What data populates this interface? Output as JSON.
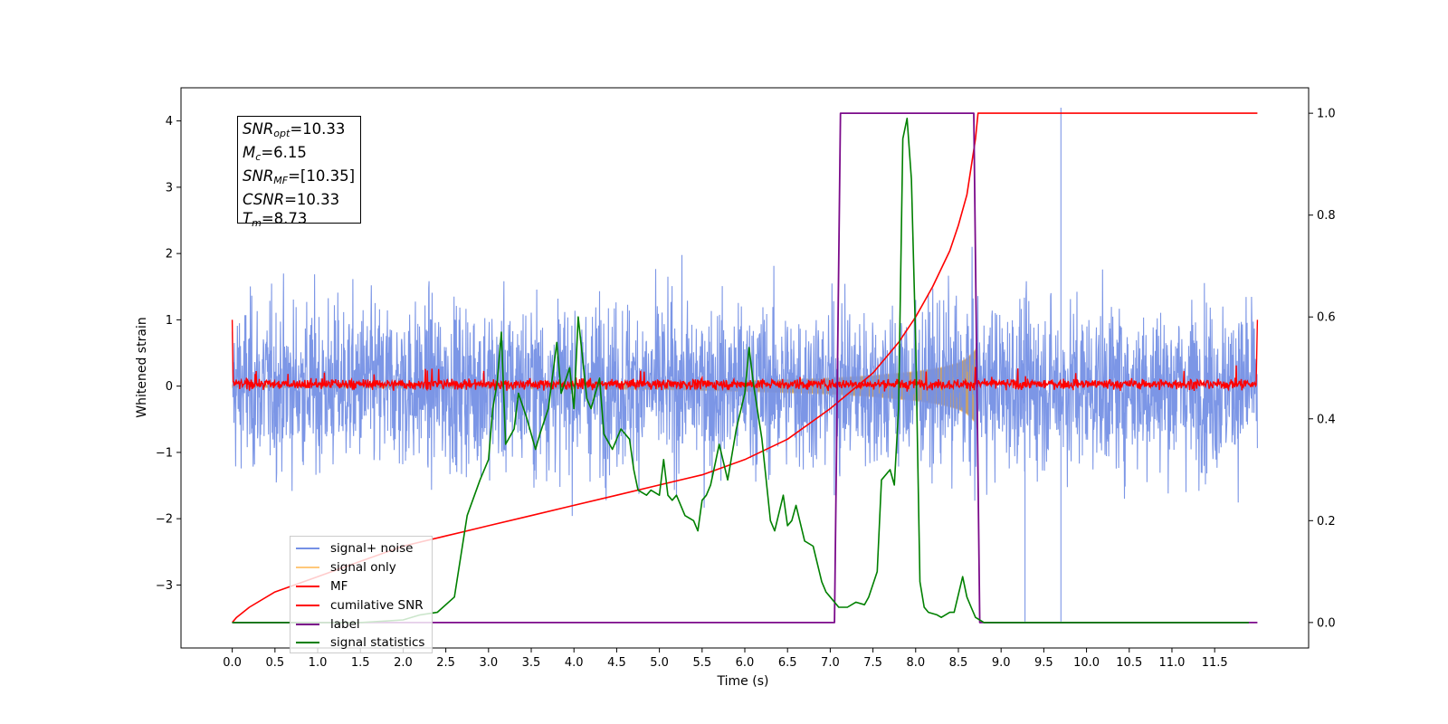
{
  "chart_data": {
    "type": "line",
    "xlabel": "Time (s)",
    "ylabel": "Whitened strain",
    "xlim": [
      -0.6,
      12.6
    ],
    "ylim": [
      -3.95,
      4.5
    ],
    "ylim_right": [
      -0.05,
      1.05
    ],
    "x_ticks": [
      "0.0",
      "0.5",
      "1.0",
      "1.5",
      "2.0",
      "2.5",
      "3.0",
      "3.5",
      "4.0",
      "4.5",
      "5.0",
      "5.5",
      "6.0",
      "6.5",
      "7.0",
      "7.5",
      "8.0",
      "8.5",
      "9.0",
      "9.5",
      "10.0",
      "10.5",
      "11.0",
      "11.5"
    ],
    "y_ticks_left": [
      "4",
      "3",
      "2",
      "1",
      "0",
      "−1",
      "−2",
      "−3"
    ],
    "y_ticks_right": [
      "1.0",
      "0.8",
      "0.6",
      "0.4",
      "0.2",
      "0.0"
    ],
    "annotation": {
      "snr_opt": "=10.33",
      "mc": "=6.15",
      "snr_mf": "=[10.35]",
      "csnr": "=10.33",
      "tm": "=8.73"
    },
    "legend": [
      "signal+ noise",
      "signal only",
      "MF",
      "cumilative SNR",
      "label",
      "signal statistics"
    ],
    "colors": {
      "signal_noise": "#7590e5",
      "signal_only": "#ffc87a",
      "signal_envelope_fill": "#c4a070",
      "mf": "#ff0000",
      "cumulative_snr": "#ff0000",
      "label": "#7b0a8a",
      "signal_statistics": "#008000"
    },
    "series": [
      {
        "name": "signal+ noise",
        "axis": "left",
        "description": "whitened strain noise, amplitude roughly between -3.4 and 3.5"
      },
      {
        "name": "signal only",
        "axis": "left",
        "envelope": {
          "x": [
            0.0,
            5.0,
            6.0,
            7.0,
            7.5,
            8.0,
            8.3,
            8.5,
            8.6,
            8.7,
            8.73
          ],
          "amp": [
            0.02,
            0.05,
            0.08,
            0.12,
            0.16,
            0.22,
            0.28,
            0.35,
            0.42,
            0.55,
            0.7
          ]
        }
      },
      {
        "name": "MF",
        "axis": "left",
        "description": "matched-filter output, noisy around 0, peak 1.0 at x=0.0 and x=12.0"
      },
      {
        "name": "cumilative SNR",
        "axis": "right",
        "x": [
          0.0,
          0.05,
          0.2,
          0.5,
          1.0,
          1.5,
          2.0,
          2.5,
          3.0,
          3.5,
          4.0,
          4.5,
          5.0,
          5.5,
          6.0,
          6.5,
          7.0,
          7.5,
          7.8,
          8.0,
          8.2,
          8.4,
          8.5,
          8.6,
          8.7,
          8.73,
          12.0
        ],
        "y": [
          0.0,
          0.01,
          0.03,
          0.06,
          0.09,
          0.12,
          0.15,
          0.17,
          0.19,
          0.21,
          0.23,
          0.25,
          0.27,
          0.29,
          0.32,
          0.36,
          0.42,
          0.49,
          0.55,
          0.6,
          0.66,
          0.73,
          0.78,
          0.84,
          0.95,
          1.0,
          1.0
        ]
      },
      {
        "name": "label",
        "axis": "right",
        "x": [
          0.0,
          7.05,
          7.12,
          8.68,
          8.75,
          12.0
        ],
        "y": [
          0.0,
          0.0,
          1.0,
          1.0,
          0.0,
          0.0
        ]
      },
      {
        "name": "signal statistics",
        "axis": "right",
        "x": [
          0.0,
          0.5,
          1.0,
          1.5,
          2.0,
          2.2,
          2.4,
          2.6,
          2.75,
          2.9,
          3.0,
          3.05,
          3.1,
          3.15,
          3.2,
          3.3,
          3.35,
          3.45,
          3.55,
          3.6,
          3.7,
          3.8,
          3.85,
          3.95,
          4.0,
          4.05,
          4.15,
          4.2,
          4.3,
          4.35,
          4.45,
          4.55,
          4.65,
          4.7,
          4.75,
          4.85,
          4.9,
          5.0,
          5.05,
          5.1,
          5.15,
          5.2,
          5.3,
          5.4,
          5.45,
          5.5,
          5.55,
          5.6,
          5.65,
          5.7,
          5.8,
          5.9,
          6.0,
          6.05,
          6.1,
          6.2,
          6.3,
          6.35,
          6.45,
          6.5,
          6.55,
          6.6,
          6.7,
          6.8,
          6.9,
          6.95,
          7.0,
          7.1,
          7.2,
          7.3,
          7.4,
          7.45,
          7.55,
          7.6,
          7.7,
          7.75,
          7.8,
          7.85,
          7.9,
          7.95,
          8.0,
          8.05,
          8.1,
          8.15,
          8.25,
          8.3,
          8.4,
          8.45,
          8.55,
          8.6,
          8.65,
          8.7,
          8.8,
          9.0,
          10.0,
          11.0,
          11.9
        ],
        "y": [
          0.0,
          0.0,
          0.0,
          0.0,
          0.005,
          0.015,
          0.02,
          0.05,
          0.21,
          0.28,
          0.32,
          0.42,
          0.47,
          0.57,
          0.35,
          0.38,
          0.45,
          0.4,
          0.34,
          0.37,
          0.42,
          0.55,
          0.45,
          0.5,
          0.42,
          0.6,
          0.44,
          0.42,
          0.48,
          0.37,
          0.34,
          0.38,
          0.36,
          0.3,
          0.26,
          0.25,
          0.26,
          0.25,
          0.32,
          0.25,
          0.24,
          0.25,
          0.21,
          0.2,
          0.18,
          0.24,
          0.25,
          0.27,
          0.31,
          0.35,
          0.28,
          0.38,
          0.45,
          0.54,
          0.47,
          0.36,
          0.2,
          0.18,
          0.25,
          0.19,
          0.2,
          0.23,
          0.16,
          0.15,
          0.08,
          0.06,
          0.05,
          0.03,
          0.03,
          0.04,
          0.035,
          0.05,
          0.1,
          0.28,
          0.3,
          0.27,
          0.42,
          0.95,
          0.99,
          0.87,
          0.55,
          0.08,
          0.03,
          0.02,
          0.015,
          0.01,
          0.02,
          0.02,
          0.09,
          0.05,
          0.03,
          0.01,
          0.0,
          0.0,
          0.0,
          0.0,
          0.0
        ]
      }
    ]
  }
}
